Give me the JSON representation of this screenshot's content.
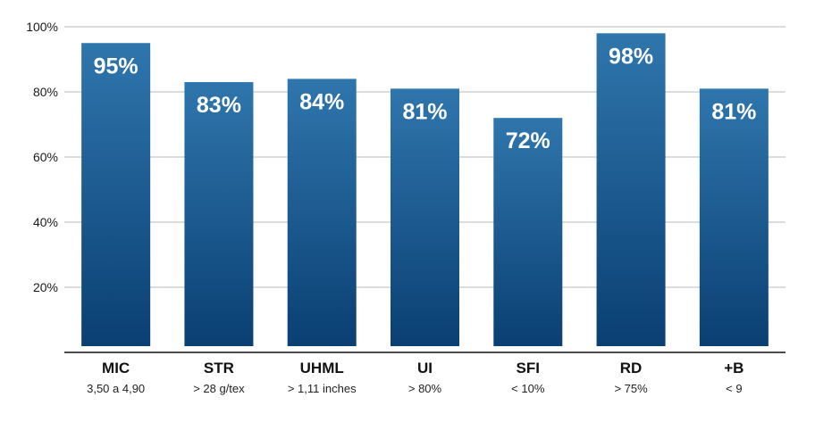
{
  "chart_data": {
    "type": "bar",
    "categories": [
      "MIC",
      "STR",
      "UHML",
      "UI",
      "SFI",
      "RD",
      "+B"
    ],
    "subcategories": [
      "3,50 a 4,90",
      "> 28 g/tex",
      "> 1,11 inches",
      "> 80%",
      "< 10%",
      "> 75%",
      "< 9"
    ],
    "values": [
      95,
      83,
      84,
      81,
      72,
      98,
      81
    ],
    "data_labels": [
      "95%",
      "83%",
      "84%",
      "81%",
      "72%",
      "98%",
      "81%"
    ],
    "y_ticks": [
      20,
      40,
      60,
      80,
      100
    ],
    "y_tick_labels": [
      "20%",
      "40%",
      "60%",
      "80%",
      "100%"
    ],
    "ylim": [
      0,
      100
    ],
    "grid": true,
    "title": "",
    "xlabel": "",
    "ylabel": "",
    "colors": {
      "bar_top": "#2f76ad",
      "bar_bottom": "#0a3f72",
      "label": "#ffffff",
      "grid": "#b9b9b9"
    }
  }
}
